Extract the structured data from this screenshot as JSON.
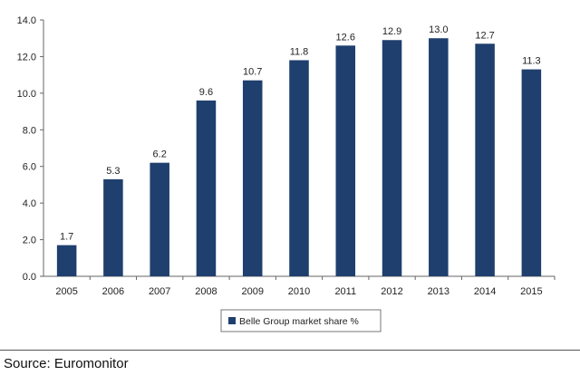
{
  "colors": {
    "bar": "#1f3f6e",
    "axis": "#666666",
    "text": "#222222"
  },
  "source": "Source: Euromonitor",
  "chart_data": {
    "type": "bar",
    "title": "",
    "xlabel": "",
    "ylabel": "",
    "categories": [
      "2005",
      "2006",
      "2007",
      "2008",
      "2009",
      "2010",
      "2011",
      "2012",
      "2013",
      "2014",
      "2015"
    ],
    "series": [
      {
        "name": "Belle Group market share %",
        "values": [
          1.7,
          5.3,
          6.2,
          9.6,
          10.7,
          11.8,
          12.6,
          12.9,
          13.0,
          12.7,
          11.3
        ]
      }
    ],
    "data_labels": [
      "1.7",
      "5.3",
      "6.2",
      "9.6",
      "10.7",
      "11.8",
      "12.6",
      "12.9",
      "13.0",
      "12.7",
      "11.3"
    ],
    "ylim": [
      0,
      14
    ],
    "yticks": [
      0,
      2,
      4,
      6,
      8,
      10,
      12,
      14
    ],
    "ytick_labels": [
      "0.0",
      "2.0",
      "4.0",
      "6.0",
      "8.0",
      "10.0",
      "12.0",
      "14.0"
    ],
    "grid": false,
    "legend": "bottom-left"
  }
}
